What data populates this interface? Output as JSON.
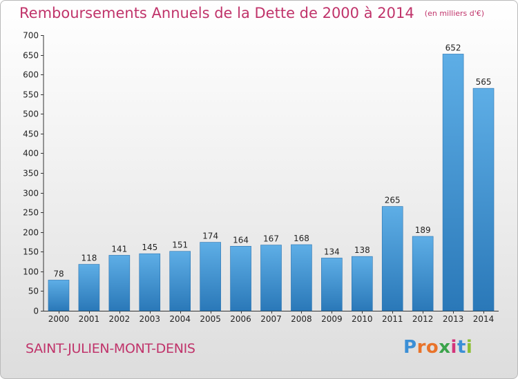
{
  "header": {
    "title": "Remboursements Annuels de la Dette de 2000 à 2014",
    "unit": "(en milliers d'€)"
  },
  "footer": {
    "place": "SAINT-JULIEN-MONT-DENIS",
    "logo": "Proxiti"
  },
  "colors": {
    "title": "#c0336a",
    "bar_light": "#5eaee6",
    "bar_dark": "#2a78b8",
    "axis": "#333333"
  },
  "chart_data": {
    "type": "bar",
    "title": "Remboursements Annuels de la Dette de 2000 à 2014",
    "subtitle": "(en milliers d'€)",
    "xlabel": "",
    "ylabel": "",
    "categories": [
      "2000",
      "2001",
      "2002",
      "2003",
      "2004",
      "2005",
      "2006",
      "2007",
      "2008",
      "2009",
      "2010",
      "2011",
      "2012",
      "2013",
      "2014"
    ],
    "values": [
      78,
      118,
      141,
      145,
      151,
      174,
      164,
      167,
      168,
      134,
      138,
      265,
      189,
      652,
      565
    ],
    "ylim": [
      0,
      700
    ],
    "yticks": [
      0,
      50,
      100,
      150,
      200,
      250,
      300,
      350,
      400,
      450,
      500,
      550,
      600,
      650,
      700
    ],
    "data_labels": true,
    "grid": false,
    "legend": "none"
  }
}
